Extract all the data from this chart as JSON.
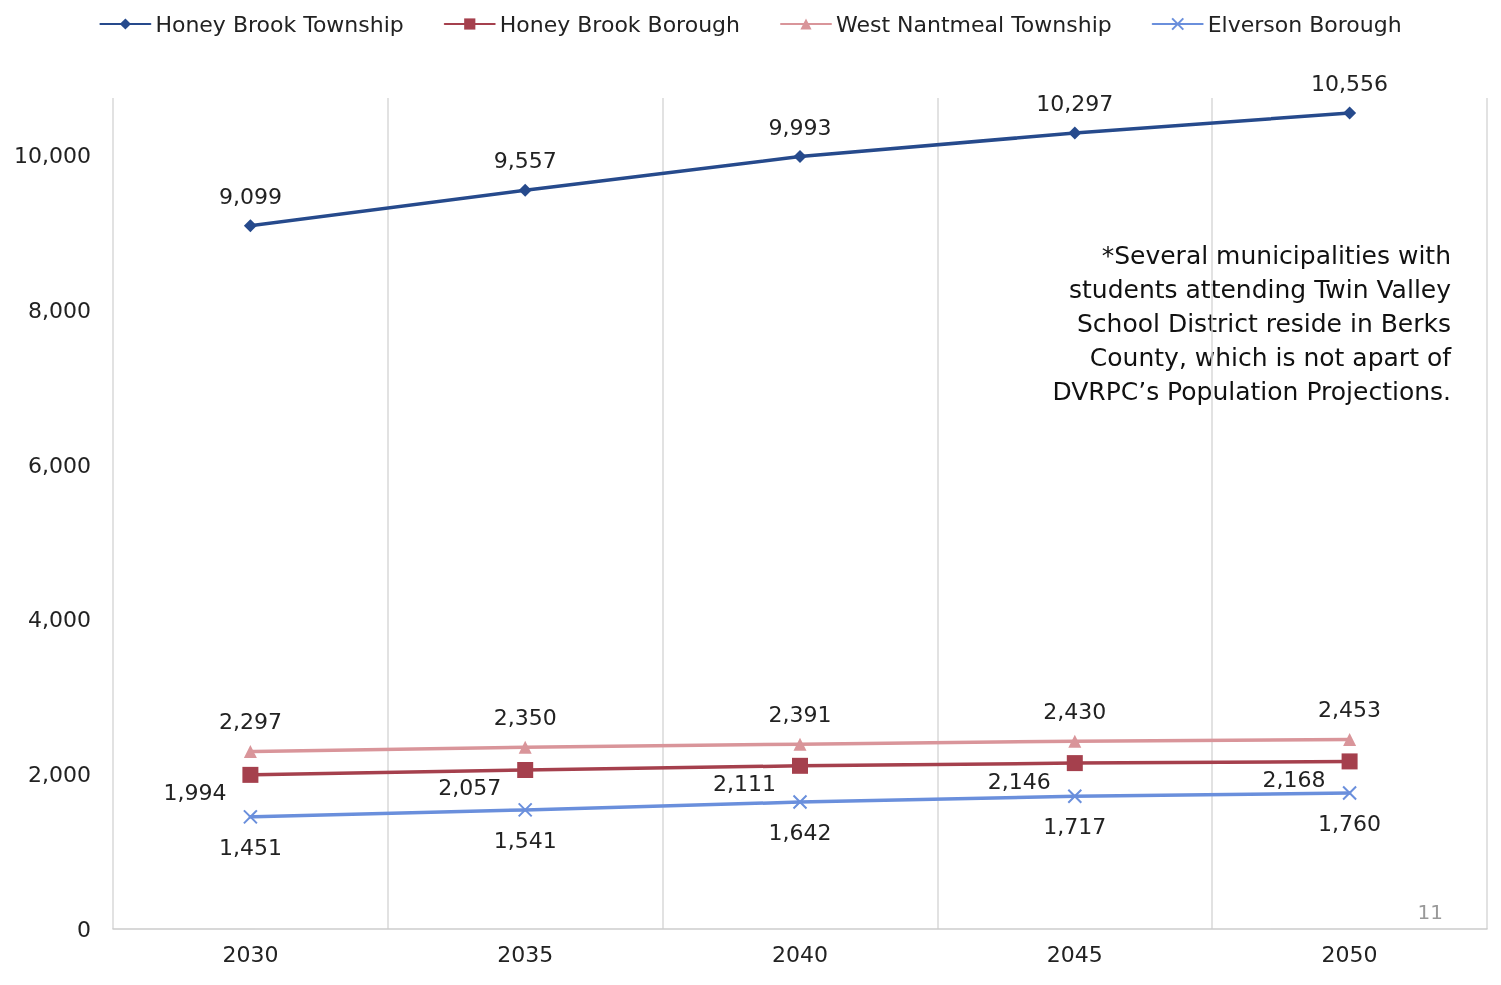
{
  "chart_data": {
    "type": "line",
    "categories": [
      "2030",
      "2035",
      "2040",
      "2045",
      "2050"
    ],
    "series": [
      {
        "name": "Honey Brook Township",
        "color": "#264a8c",
        "marker": "diamond",
        "values": [
          9099,
          9557,
          9993,
          10297,
          10556
        ],
        "value_labels": [
          "9,099",
          "9,557",
          "9,993",
          "10,297",
          "10,556"
        ]
      },
      {
        "name": "Honey Brook Borough",
        "color": "#a5404d",
        "marker": "square",
        "values": [
          1994,
          2057,
          2111,
          2146,
          2168
        ],
        "value_labels": [
          "1,994",
          "2,057",
          "2,111",
          "2,146",
          "2,168"
        ]
      },
      {
        "name": "West Nantmeal Township",
        "color": "#d9959a",
        "marker": "triangle",
        "values": [
          2297,
          2350,
          2391,
          2430,
          2453
        ],
        "value_labels": [
          "2,297",
          "2,350",
          "2,391",
          "2,430",
          "2,453"
        ]
      },
      {
        "name": "Elverson Borough",
        "color": "#6a8fdc",
        "marker": "cross",
        "values": [
          1451,
          1541,
          1642,
          1717,
          1760
        ],
        "value_labels": [
          "1,451",
          "1,541",
          "1,642",
          "1,717",
          "1,760"
        ]
      }
    ],
    "ylim": [
      0,
      10750
    ],
    "yticks": [
      0,
      {
        "value": 2000,
        "label": "2,000"
      },
      {
        "value": 4000,
        "label": "4,000"
      },
      {
        "value": 6000,
        "label": "6,000"
      },
      {
        "value": 8000,
        "label": "8,000"
      },
      {
        "value": 10000,
        "label": "10,000"
      }
    ],
    "grid": "x",
    "legend": "top",
    "annotations": [
      "*Several municipalities with\nstudents attending Twin Valley\nSchool District reside in Berks\nCounty, which is not apart of\nDVRPC’s Population Projections.",
      "11"
    ]
  }
}
